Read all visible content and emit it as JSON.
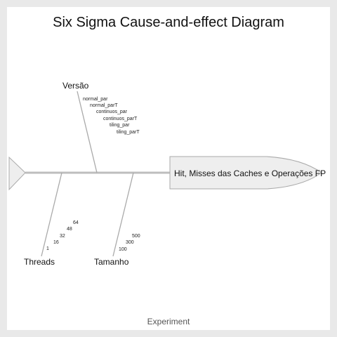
{
  "title": "Six Sigma Cause-and-effect Diagram",
  "effect": "Hit, Misses das Caches e Operações FP",
  "footer": "Experiment",
  "colors": {
    "background": "#e9e9e9",
    "panel": "#ffffff",
    "spine": "#bdbdbd",
    "head_fill": "#eeeeee",
    "head_stroke": "#aaaaaa"
  },
  "categories": [
    {
      "name": "Versão",
      "causes": [
        "normal_par",
        "normal_parT",
        "continuos_par",
        "continuos_parT",
        "tiling_par",
        "tiling_parT"
      ]
    },
    {
      "name": "Threads",
      "causes": [
        "1",
        "16",
        "32",
        "48",
        "64"
      ]
    },
    {
      "name": "Tamanho",
      "causes": [
        "100",
        "300",
        "500"
      ]
    }
  ]
}
